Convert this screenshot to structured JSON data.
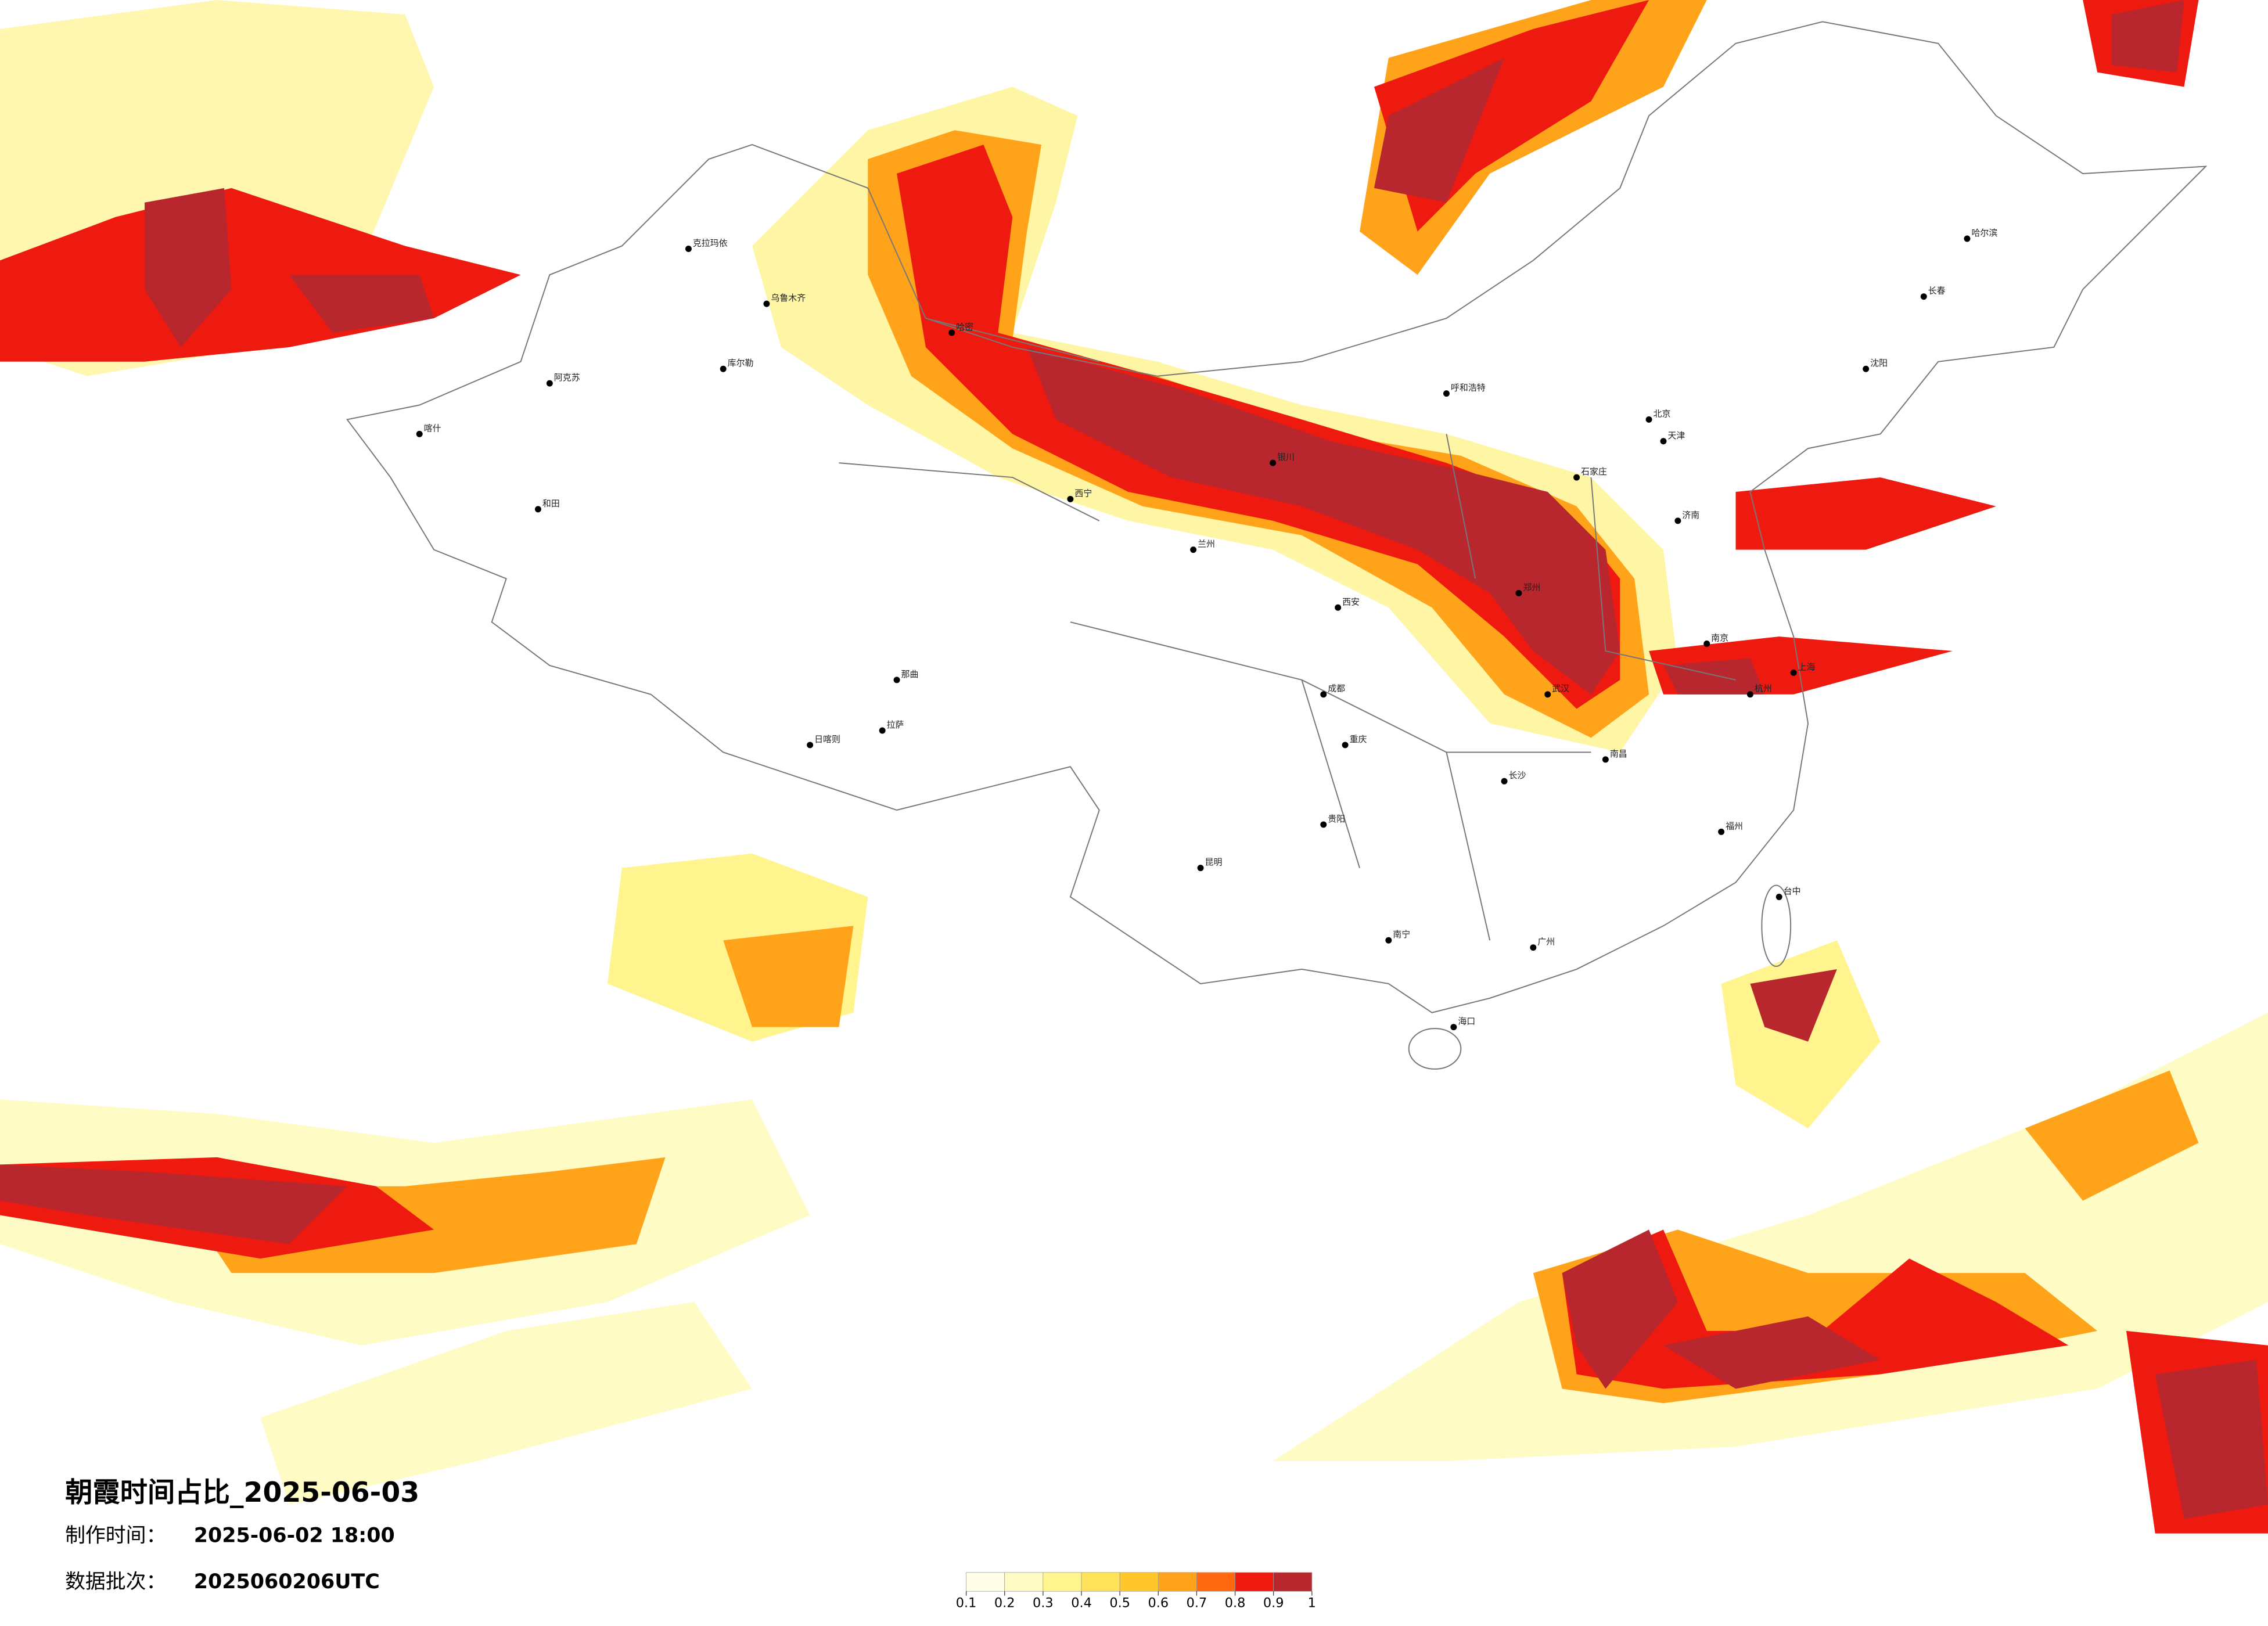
{
  "title": "朝霞时间占比_2025-06-03",
  "made_label": "制作时间：",
  "made_time": "2025-06-02 18:00",
  "batch_label": "数据批次：",
  "batch": "2025060206UTC",
  "legend": {
    "ticks": [
      0.1,
      0.2,
      0.3,
      0.4,
      0.5,
      0.6,
      0.7,
      0.8,
      0.9,
      1
    ],
    "colors": [
      "#fffde8",
      "#fffbc4",
      "#fff48e",
      "#ffe25a",
      "#ffc72a",
      "#ffa31a",
      "#ff6a10",
      "#ee1a10",
      "#b8262e"
    ]
  },
  "cities": [
    "乌鲁木齐",
    "克拉玛依",
    "喀什",
    "和田",
    "阿克苏",
    "库尔勒",
    "哈密",
    "拉萨",
    "日喀则",
    "那曲",
    "西宁",
    "兰州",
    "银川",
    "呼和浩特",
    "北京",
    "天津",
    "石家庄",
    "济南",
    "郑州",
    "西安",
    "成都",
    "重庆",
    "昆明",
    "贵阳",
    "南宁",
    "广州",
    "长沙",
    "武汉",
    "南京",
    "上海",
    "杭州",
    "福州",
    "南昌",
    "哈尔滨",
    "长春",
    "沈阳",
    "海口",
    "台中"
  ]
}
